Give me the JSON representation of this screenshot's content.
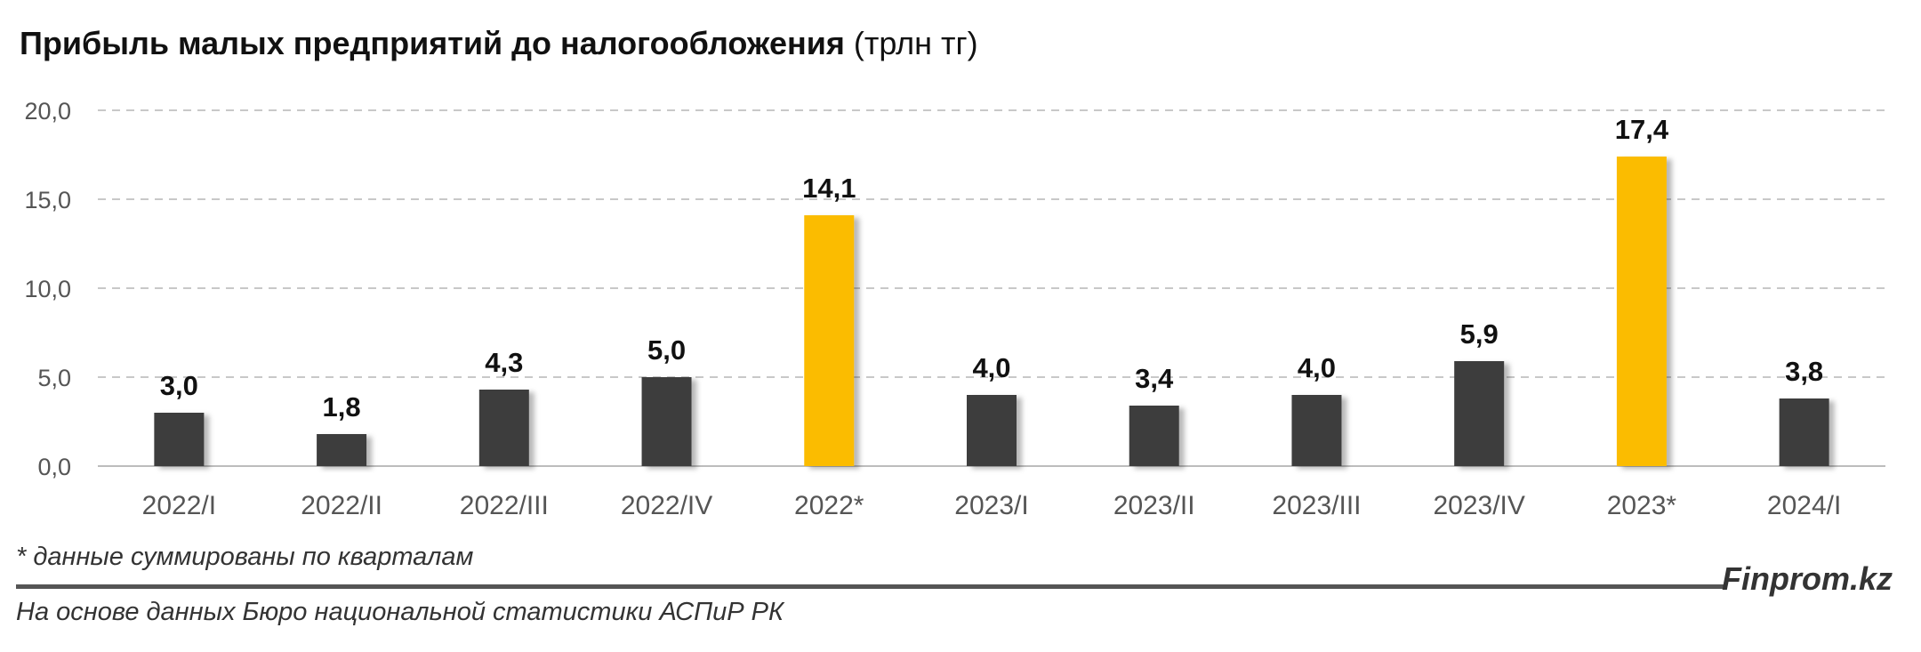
{
  "chart_data": {
    "type": "bar",
    "title": "Прибыль малых предприятий до налогообложения",
    "title_unit": "(трлн тг)",
    "categories": [
      "2022/I",
      "2022/II",
      "2022/III",
      "2022/IV",
      "2022*",
      "2023/I",
      "2023/II",
      "2023/III",
      "2023/IV",
      "2023*",
      "2024/I"
    ],
    "values": [
      3.0,
      1.8,
      4.3,
      5.0,
      14.1,
      4.0,
      3.4,
      4.0,
      5.9,
      17.4,
      3.8
    ],
    "value_labels": [
      "3,0",
      "1,8",
      "4,3",
      "5,0",
      "14,1",
      "4,0",
      "3,4",
      "4,0",
      "5,9",
      "17,4",
      "3,8"
    ],
    "highlight": [
      false,
      false,
      false,
      false,
      true,
      false,
      false,
      false,
      false,
      true,
      false
    ],
    "ylim": [
      0,
      20
    ],
    "yticks": [
      0,
      5,
      10,
      15,
      20
    ],
    "ytick_labels": [
      "0,0",
      "5,0",
      "10,0",
      "15,0",
      "20,0"
    ],
    "grid": true,
    "colors": {
      "bar": "#3d3d3d",
      "highlight": "#fbbc00",
      "grid": "#c8c8c8"
    }
  },
  "footnote": "* данные суммированы по кварталам",
  "source": "На основе данных Бюро национальной статистики АСПиР РК",
  "brand": "Finprom.kz"
}
